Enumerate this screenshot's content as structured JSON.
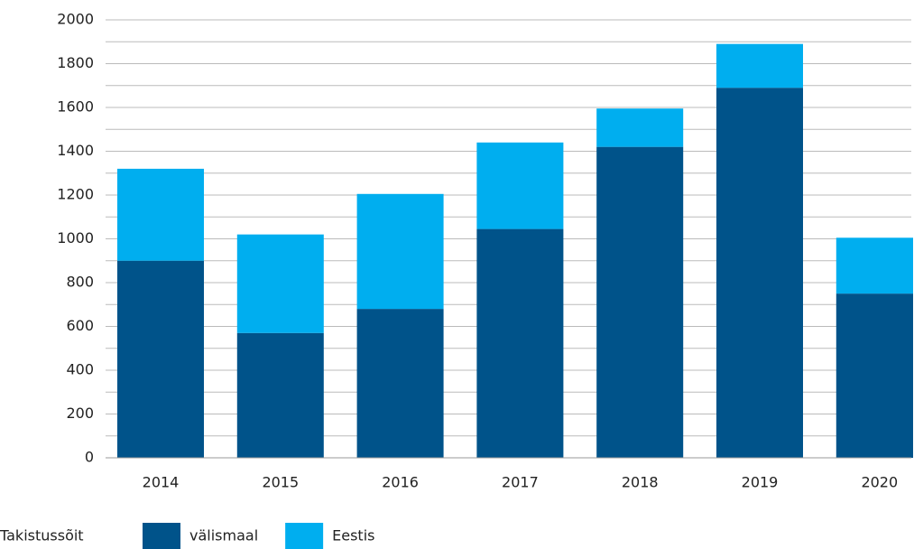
{
  "chart_data": {
    "type": "stacked_bar",
    "categories": [
      "2014",
      "2015",
      "2016",
      "2017",
      "2018",
      "2019",
      "2020"
    ],
    "series": [
      {
        "name": "välismaal",
        "color": "#00538a",
        "values": [
          900,
          570,
          680,
          1045,
          1420,
          1690,
          750
        ]
      },
      {
        "name": "Eestis",
        "color": "#00aeef",
        "values": [
          420,
          450,
          525,
          395,
          175,
          200,
          255
        ]
      }
    ],
    "legend_title": "Takistussõit",
    "ylim": [
      0,
      2000
    ],
    "yticks": [
      0,
      200,
      400,
      600,
      800,
      1000,
      1200,
      1400,
      1600,
      1800,
      2000
    ],
    "minor_yticks": [
      100,
      300,
      500,
      700,
      900,
      1100,
      1300,
      1500,
      1700,
      1900
    ],
    "grid": true,
    "legend": "bottom-left"
  }
}
